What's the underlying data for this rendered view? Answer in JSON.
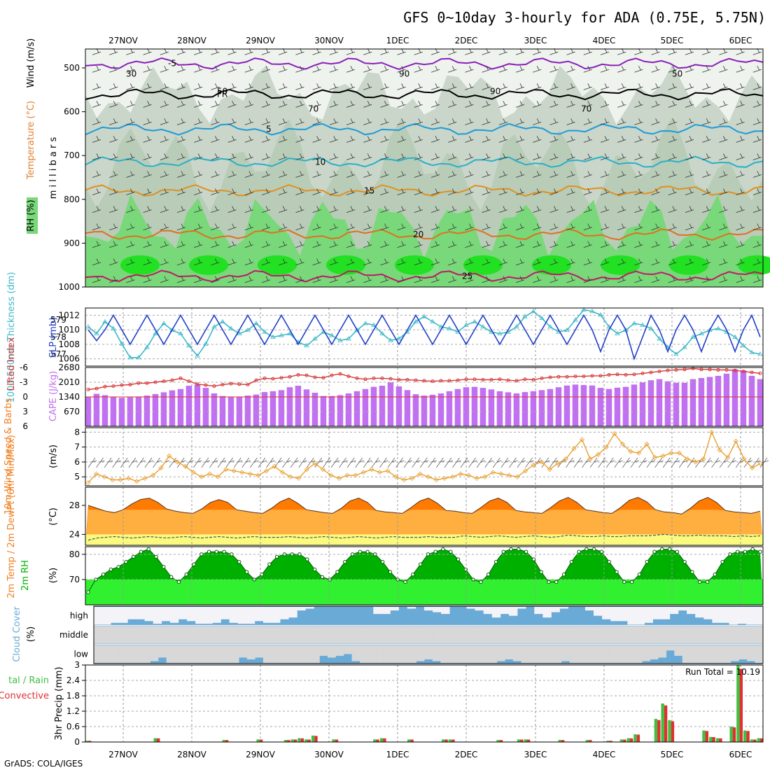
{
  "title": "GFS 0~10day 3-hourly for ADA (0.75E, 5.75N)",
  "credit": "GrADS: COLA/IGES",
  "dates": [
    "27NOV",
    "28NOV",
    "29NOV",
    "30NOV",
    "1DEC",
    "2DEC",
    "3DEC",
    "4DEC",
    "5DEC",
    "6DEC"
  ],
  "colors": {
    "rh_light": "#dfe9df",
    "rh_mid": "#c9d6c9",
    "rh_green": "#79d879",
    "rh_bright": "#22e022",
    "slp": "#1f3fc8",
    "thick": "#3cb8c8",
    "li": "#d83838",
    "cape": "#c070f0",
    "wind": "#e8a030",
    "temp": "#ff7a00",
    "temp_fill": "#ffae40",
    "dew_fill": "#fafa80",
    "rh2m": "#00b000",
    "rh2m_fill": "#30f030",
    "cloud": "#6aaad6",
    "cloud_clear": "#f4f4f8",
    "precip_total": "#40c040",
    "precip_conv": "#e03030"
  },
  "chart_data": [
    {
      "type": "contour",
      "name": "pressure-cross-section",
      "ylabel": "m i l l i b a r s",
      "yticks": [
        500,
        600,
        700,
        800,
        900,
        1000
      ],
      "legend": [
        "Wind (m/s)",
        "Temperature (°C)",
        "RH (%)"
      ],
      "isotherms": [
        {
          "label": "-5",
          "level": 490
        },
        {
          "label": "FR",
          "level": 560
        },
        {
          "label": "5",
          "level": 640
        },
        {
          "label": "10",
          "level": 715
        },
        {
          "label": "15",
          "level": 780
        },
        {
          "label": "20",
          "level": 880
        },
        {
          "label": "25",
          "level": 975
        }
      ],
      "rh_labels": [
        "30",
        "50",
        "70",
        "90",
        "90",
        "70",
        "50"
      ]
    },
    {
      "type": "line",
      "name": "slp-thickness",
      "series": [
        {
          "name": "SLP (mb)",
          "axis": "right",
          "ticks": [
            1006,
            1008,
            1010,
            1012
          ],
          "ylim": [
            1005,
            1013
          ],
          "values": [
            1010,
            1008.5,
            1010,
            1012,
            1010,
            1008,
            1010,
            1012,
            1010,
            1008,
            1010,
            1012,
            1010,
            1008,
            1010,
            1012,
            1010,
            1008,
            1010,
            1012,
            1010,
            1008,
            1010,
            1012,
            1010,
            1008,
            1010,
            1012,
            1010,
            1008,
            1010,
            1012,
            1010,
            1008,
            1010,
            1012,
            1010,
            1008,
            1010,
            1012,
            1010,
            1008,
            1010,
            1012,
            1010,
            1008,
            1010,
            1012,
            1010,
            1008,
            1010,
            1012,
            1010,
            1008,
            1010,
            1012,
            1010,
            1008,
            1010,
            1012,
            1010,
            1007,
            1010,
            1012,
            1010,
            1006,
            1009,
            1012,
            1010,
            1007,
            1010,
            1012,
            1010,
            1007,
            1010,
            1012,
            1010,
            1007,
            1010,
            1012,
            1009
          ]
        },
        {
          "name": "1000-500mb Thickness (dm)",
          "axis": "left",
          "ticks": [
            577,
            578,
            579
          ],
          "ylim": [
            576.3,
            579.7
          ],
          "values": [
            578.6,
            578.2,
            578.9,
            578.5,
            577.6,
            576.8,
            576.8,
            577.4,
            578.2,
            578.8,
            578.4,
            578.2,
            577.5,
            576.9,
            577.6,
            578.6,
            578.9,
            578.5,
            578.2,
            578.4,
            578.8,
            578.3,
            578.0,
            578.1,
            578.2,
            577.7,
            577.5,
            577.9,
            578.3,
            578.1,
            577.8,
            577.9,
            578.4,
            578.8,
            578.7,
            578.2,
            577.8,
            577.9,
            578.3,
            578.9,
            579.2,
            578.9,
            578.6,
            578.5,
            578.3,
            578.7,
            578.9,
            578.6,
            578.3,
            578.2,
            578.3,
            578.6,
            579.2,
            579.5,
            579.1,
            578.6,
            578.3,
            578.4,
            579.0,
            579.6,
            579.5,
            579.3,
            578.6,
            578.2,
            578.4,
            578.8,
            578.7,
            578.5,
            577.9,
            577.4,
            577.0,
            577.4,
            578.0,
            578.2,
            578.4,
            578.5,
            578.3,
            578.0,
            577.5,
            577.1,
            577.0
          ]
        }
      ]
    },
    {
      "type": "bar",
      "name": "cape-lifted-index",
      "series": [
        {
          "name": "CAPE (J/kg)",
          "ticks": [
            670,
            1340,
            2010,
            2680
          ],
          "ylim": [
            0,
            2680
          ],
          "values": [
            1350,
            1480,
            1420,
            1330,
            1300,
            1320,
            1360,
            1400,
            1470,
            1550,
            1640,
            1700,
            1850,
            1900,
            1750,
            1500,
            1380,
            1330,
            1340,
            1400,
            1450,
            1560,
            1600,
            1650,
            1780,
            1850,
            1680,
            1530,
            1380,
            1380,
            1420,
            1500,
            1600,
            1700,
            1800,
            1850,
            2000,
            1820,
            1650,
            1460,
            1400,
            1440,
            1500,
            1600,
            1700,
            1780,
            1800,
            1750,
            1680,
            1600,
            1550,
            1500,
            1560,
            1600,
            1650,
            1700,
            1780,
            1860,
            1900,
            1880,
            1860,
            1750,
            1700,
            1760,
            1800,
            1900,
            2000,
            2100,
            2150,
            2050,
            1980,
            1980,
            2150,
            2200,
            2250,
            2300,
            2400,
            2600,
            2550,
            2300,
            2150
          ]
        },
        {
          "name": "Lifted Index",
          "ticks": [
            -6,
            -3,
            0,
            3,
            6
          ],
          "ylim": [
            -6,
            6
          ],
          "values": [
            -1.5,
            -1.7,
            -2.1,
            -2.2,
            -2.4,
            -2.5,
            -2.8,
            -2.8,
            -3.0,
            -3.2,
            -3.4,
            -3.8,
            -3.2,
            -2.6,
            -2.4,
            -2.2,
            -2.5,
            -2.7,
            -2.6,
            -2.5,
            -3.4,
            -3.8,
            -3.7,
            -3.9,
            -4.1,
            -4.5,
            -4.4,
            -4.0,
            -3.9,
            -4.4,
            -4.7,
            -4.2,
            -3.8,
            -3.6,
            -3.8,
            -3.8,
            -3.7,
            -3.5,
            -3.5,
            -3.4,
            -3.3,
            -3.2,
            -3.3,
            -3.3,
            -3.4,
            -3.6,
            -3.6,
            -3.5,
            -3.5,
            -3.6,
            -3.4,
            -3.3,
            -3.6,
            -3.5,
            -3.8,
            -4.0,
            -4.1,
            -4.1,
            -4.2,
            -4.2,
            -4.3,
            -4.3,
            -4.5,
            -4.6,
            -4.5,
            -4.6,
            -4.8,
            -5.0,
            -5.2,
            -5.4,
            -5.5,
            -5.6,
            -5.8,
            -5.6,
            -5.6,
            -5.5,
            -5.5,
            -5.4,
            -5.2,
            -5.0,
            -4.8
          ]
        }
      ]
    },
    {
      "type": "line",
      "name": "wind-10m",
      "ylabel": "(m/s)",
      "series_label": "10m Wind Speed & Barbs",
      "ticks": [
        5,
        6,
        7,
        8
      ],
      "ylim": [
        4.4,
        8.3
      ],
      "values": [
        4.6,
        5.2,
        5.0,
        4.8,
        4.8,
        4.9,
        4.7,
        4.9,
        5.1,
        5.6,
        6.4,
        6.0,
        5.7,
        5.3,
        5.0,
        5.2,
        5.0,
        5.5,
        5.4,
        5.3,
        5.2,
        5.1,
        5.4,
        5.7,
        5.3,
        5.0,
        4.9,
        5.5,
        5.9,
        5.5,
        5.1,
        4.9,
        5.1,
        5.1,
        5.3,
        5.5,
        5.3,
        5.4,
        5.0,
        4.8,
        4.9,
        5.2,
        5.0,
        4.8,
        4.9,
        5.0,
        5.2,
        5.1,
        4.9,
        5.0,
        5.3,
        5.2,
        5.1,
        5.0,
        5.4,
        5.8,
        6.0,
        5.5,
        5.9,
        6.2,
        6.9,
        7.5,
        6.2,
        6.5,
        7.0,
        7.9,
        7.2,
        6.7,
        6.6,
        7.2,
        6.3,
        6.4,
        6.6,
        6.6,
        6.2,
        6.0,
        6.2,
        8.0,
        6.8,
        6.3,
        7.4,
        6.2,
        5.6,
        5.9
      ]
    },
    {
      "type": "area",
      "name": "temp-dewpoint",
      "ylabel": "(°C)",
      "series_label": "2m Temp / 2m DewPt (6hr Min/Max)",
      "ticks": [
        24,
        28
      ],
      "ylim": [
        22.5,
        30.5
      ],
      "temp": [
        28.0,
        27.6,
        27.2,
        27.0,
        27.4,
        28.2,
        28.8,
        29.0,
        28.4,
        27.5,
        27.2,
        27.0,
        26.9,
        27.5,
        28.4,
        28.8,
        28.4,
        27.4,
        27.2,
        27.0,
        26.9,
        27.6,
        28.5,
        29.0,
        28.3,
        27.4,
        27.2,
        27.0,
        26.9,
        27.6,
        28.6,
        29.0,
        28.4,
        27.3,
        27.1,
        27.0,
        26.9,
        27.7,
        28.6,
        29.0,
        28.3,
        27.3,
        27.2,
        27.0,
        26.9,
        27.7,
        28.6,
        29.0,
        28.4,
        27.3,
        27.1,
        27.0,
        26.9,
        27.7,
        28.6,
        29.1,
        28.4,
        27.4,
        27.2,
        27.0,
        26.9,
        27.7,
        28.7,
        29.1,
        28.5,
        27.4,
        27.1,
        27.0,
        26.8,
        27.6,
        28.6,
        29.1,
        28.4,
        27.3,
        27.1,
        27.0,
        26.9,
        27.2
      ],
      "dewpoint": [
        23.2,
        23.5,
        23.6,
        23.7,
        23.6,
        23.5,
        23.6,
        23.7,
        23.6,
        23.5,
        23.6,
        23.7,
        23.6,
        23.5,
        23.6,
        23.7,
        23.6,
        23.5,
        23.6,
        23.7,
        23.6,
        23.6,
        23.6,
        23.7,
        23.6,
        23.5,
        23.6,
        23.7,
        23.6,
        23.5,
        23.6,
        23.7,
        23.6,
        23.5,
        23.6,
        23.7,
        23.6,
        23.6,
        23.6,
        23.7,
        23.6,
        23.6,
        23.6,
        23.8,
        23.7,
        23.6,
        23.7,
        23.8,
        23.7,
        23.6,
        23.7,
        23.8,
        23.7,
        23.6,
        23.7,
        23.9,
        23.8,
        23.7,
        23.7,
        23.8,
        23.7,
        23.7,
        23.8,
        23.8,
        23.8,
        23.9,
        24.0,
        23.9,
        23.8,
        23.8,
        23.9,
        23.8,
        23.8,
        23.8,
        23.7,
        23.8,
        23.7,
        23.8
      ]
    },
    {
      "type": "area",
      "name": "rh-2m",
      "ylabel": "(%)",
      "series_label": "2m RH",
      "ticks": [
        70,
        80
      ],
      "ylim": [
        60,
        83
      ],
      "values": [
        65,
        70,
        72,
        74,
        75,
        77,
        79,
        81,
        82,
        79,
        75,
        71,
        69,
        72,
        76,
        80,
        81,
        81,
        81,
        80,
        77,
        73,
        70,
        72,
        76,
        79,
        80,
        80,
        80,
        78,
        74,
        71,
        70,
        73,
        77,
        80,
        81,
        81,
        80,
        77,
        73,
        70,
        69,
        72,
        76,
        80,
        81,
        82,
        81,
        78,
        74,
        70,
        69,
        72,
        77,
        81,
        82,
        82,
        81,
        78,
        73,
        69,
        69,
        72,
        77,
        81,
        82,
        82,
        81,
        77,
        73,
        69,
        69,
        72,
        77,
        81,
        82,
        82,
        81,
        77,
        73,
        69,
        69,
        72,
        77,
        80,
        81,
        81,
        82,
        81
      ]
    },
    {
      "type": "bar",
      "name": "cloud-cover",
      "ylabel": "(%)",
      "series_label": "Cloud Cover",
      "levels": [
        "high",
        "middle",
        "low"
      ],
      "high": [
        0,
        0,
        10,
        10,
        30,
        30,
        20,
        5,
        20,
        10,
        30,
        20,
        5,
        5,
        10,
        30,
        10,
        5,
        5,
        20,
        10,
        10,
        30,
        40,
        80,
        90,
        100,
        100,
        100,
        100,
        100,
        100,
        100,
        60,
        60,
        80,
        100,
        90,
        100,
        80,
        70,
        60,
        100,
        100,
        90,
        80,
        60,
        40,
        60,
        50,
        90,
        100,
        60,
        40,
        70,
        90,
        100,
        100,
        80,
        50,
        30,
        20,
        20,
        0,
        0,
        10,
        30,
        30,
        60,
        80,
        60,
        40,
        30,
        10,
        10,
        0,
        5,
        0,
        0
      ],
      "middle": [
        0,
        0,
        0,
        0,
        0,
        0,
        0,
        0,
        0,
        0,
        0,
        0,
        0,
        0,
        0,
        0,
        0,
        0,
        0,
        0,
        0,
        0,
        0,
        0,
        0,
        0,
        0,
        0,
        0,
        0,
        0,
        0,
        0,
        0,
        0,
        0,
        0,
        0,
        0,
        0,
        0,
        0,
        0,
        0,
        0,
        0,
        0,
        0,
        0,
        0,
        0,
        0,
        0,
        0,
        0,
        0,
        0,
        0,
        0,
        0,
        0,
        0,
        0,
        0,
        0,
        0,
        0,
        0,
        0,
        0,
        0,
        0,
        0,
        0,
        0,
        0,
        0,
        0,
        0
      ],
      "low": [
        0,
        0,
        0,
        0,
        0,
        0,
        0,
        10,
        30,
        0,
        0,
        0,
        0,
        0,
        0,
        0,
        0,
        0,
        30,
        20,
        30,
        0,
        0,
        0,
        0,
        0,
        0,
        0,
        40,
        30,
        40,
        50,
        10,
        0,
        0,
        0,
        0,
        0,
        0,
        0,
        10,
        20,
        10,
        0,
        0,
        0,
        0,
        0,
        0,
        0,
        10,
        20,
        10,
        0,
        0,
        0,
        0,
        0,
        10,
        0,
        0,
        0,
        0,
        0,
        0,
        0,
        0,
        0,
        10,
        20,
        30,
        70,
        40,
        0,
        0,
        0,
        0,
        0,
        0,
        10,
        20,
        10,
        0
      ]
    },
    {
      "type": "bar",
      "name": "precip-3hr",
      "ylabel": "3hr Precip (mm)",
      "series_label": "Total / Rain Convective",
      "run_total_label": "Run Total = 10.19",
      "ticks": [
        0,
        0.6,
        1.2,
        1.8,
        2.4,
        3
      ],
      "ylim": [
        0,
        3
      ],
      "values": [
        0.05,
        0,
        0,
        0,
        0,
        0,
        0,
        0,
        0,
        0,
        0.15,
        0,
        0,
        0,
        0,
        0,
        0,
        0,
        0,
        0,
        0.08,
        0,
        0,
        0,
        0,
        0.1,
        0,
        0,
        0,
        0.08,
        0.1,
        0.15,
        0.1,
        0.25,
        0,
        0,
        0.1,
        0,
        0,
        0,
        0,
        0,
        0.1,
        0.15,
        0,
        0,
        0,
        0.1,
        0,
        0,
        0,
        0,
        0.1,
        0.1,
        0,
        0,
        0,
        0,
        0,
        0,
        0.08,
        0,
        0,
        0.1,
        0.1,
        0,
        0,
        0,
        0,
        0.08,
        0,
        0,
        0,
        0.08,
        0,
        0,
        0.05,
        0,
        0.1,
        0.15,
        0.3,
        0,
        0,
        0.9,
        1.5,
        0.85,
        0,
        0,
        0,
        0,
        0.45,
        0.2,
        0.15,
        0,
        0.6,
        3.0,
        0.45,
        0.1,
        0.15
      ]
    }
  ]
}
